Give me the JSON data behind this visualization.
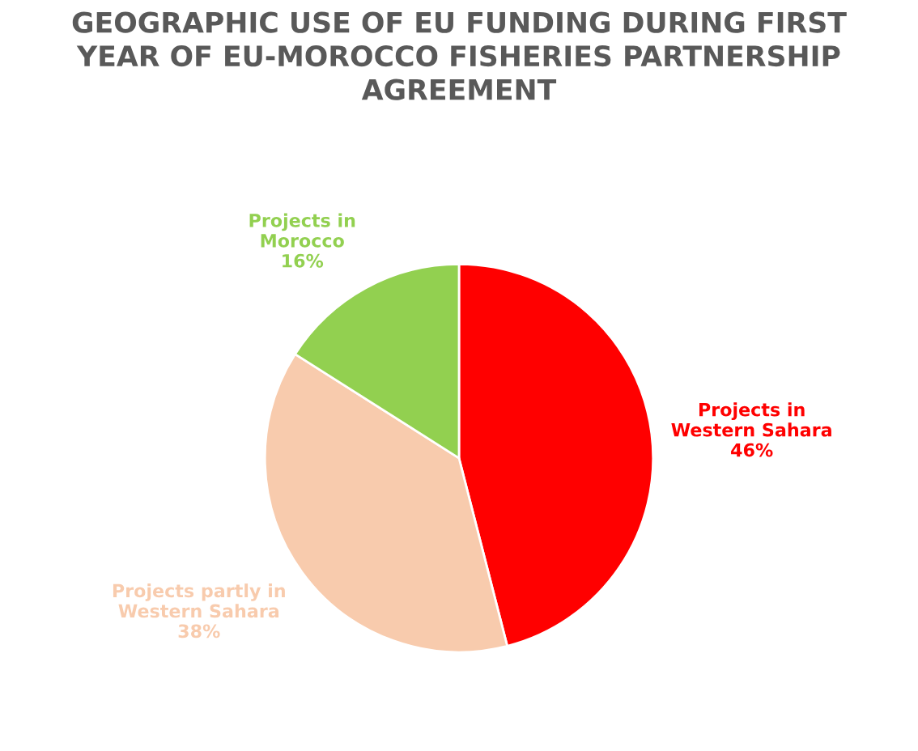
{
  "chart_data": {
    "type": "pie",
    "title": "GEOGRAPHIC USE OF EU FUNDING DURING FIRST\nYEAR OF EU-MOROCCO FISHERIES PARTNERSHIP\nAGREEMENT",
    "categories": [
      "Projects in\nWestern Sahara",
      "Projects partly in\nWestern Sahara",
      "Projects in\nMorocco"
    ],
    "values": [
      46,
      38,
      16
    ],
    "colors": [
      "#ff0000",
      "#f8cbad",
      "#92d050"
    ],
    "value_labels": [
      "46%",
      "38%",
      "16%"
    ],
    "legend": false
  }
}
